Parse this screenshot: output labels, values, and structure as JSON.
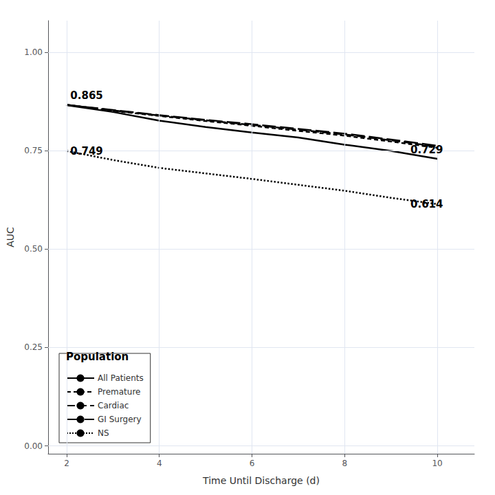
{
  "chart_data": {
    "type": "line",
    "xlabel": "Time Until Discharge (d)",
    "ylabel": "AUC",
    "xlim": [
      1.6,
      10.8
    ],
    "xticks": [
      2,
      4,
      6,
      8,
      10
    ],
    "ylim": [
      -0.02,
      1.08
    ],
    "yticks": [
      {
        "value": 0.0,
        "label": "0.00"
      },
      {
        "value": 0.25,
        "label": "0.25"
      },
      {
        "value": 0.5,
        "label": "0.50"
      },
      {
        "value": 0.75,
        "label": "0.75"
      },
      {
        "value": 1.0,
        "label": "1.00"
      }
    ],
    "grid": true,
    "legend": "lower left",
    "legend_title": "Population",
    "x": [
      2,
      3,
      4,
      5,
      6,
      7,
      8,
      9,
      10
    ],
    "series": [
      {
        "name": "All Patients",
        "color": "black",
        "line_style": "solid",
        "values": [
          0.865,
          0.848,
          0.826,
          0.81,
          0.796,
          0.783,
          0.765,
          0.749,
          0.729
        ]
      },
      {
        "name": "Premature",
        "color": "black",
        "line_style": "shortdash",
        "values": [
          0.866,
          0.851,
          0.838,
          0.825,
          0.813,
          0.8,
          0.788,
          0.773,
          0.757
        ]
      },
      {
        "name": "Cardiac",
        "color": "black",
        "line_style": "dash",
        "values": [
          0.866,
          0.852,
          0.839,
          0.827,
          0.815,
          0.803,
          0.791,
          0.776,
          0.76
        ]
      },
      {
        "name": "GI Surgery",
        "color": "black",
        "line_style": "longdash",
        "values": [
          0.866,
          0.853,
          0.84,
          0.828,
          0.817,
          0.805,
          0.793,
          0.778,
          0.762
        ]
      },
      {
        "name": "NS",
        "color": "black",
        "line_style": "dotted",
        "values": [
          0.749,
          0.726,
          0.706,
          0.692,
          0.678,
          0.663,
          0.648,
          0.63,
          0.614
        ]
      }
    ],
    "annotations": [
      {
        "text": "0.865",
        "x": 2.08,
        "y": 0.876
      },
      {
        "text": "0.749",
        "x": 2.08,
        "y": 0.736
      },
      {
        "text": "0.729",
        "x": 9.42,
        "y": 0.738
      },
      {
        "text": "0.614",
        "x": 9.42,
        "y": 0.6
      }
    ]
  }
}
